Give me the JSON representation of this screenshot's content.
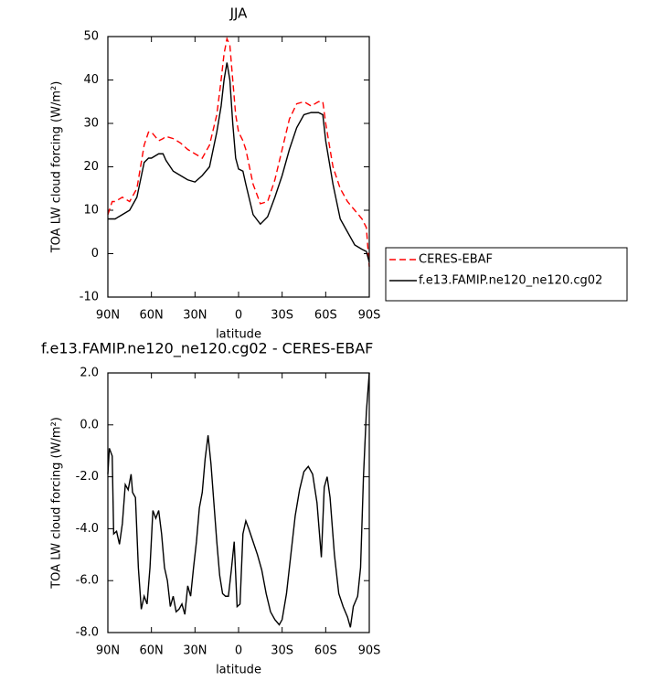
{
  "chart_data": [
    {
      "type": "line",
      "title": "JJA",
      "xlabel": "latitude",
      "ylabel": "TOA LW cloud forcing (W/m²)",
      "x": [
        90,
        87,
        85,
        80,
        75,
        70,
        65,
        62,
        60,
        55,
        52,
        50,
        45,
        40,
        35,
        30,
        25,
        20,
        15,
        12,
        10,
        8,
        6,
        4,
        2,
        0,
        -3,
        -5,
        -10,
        -15,
        -20,
        -25,
        -30,
        -35,
        -40,
        -45,
        -50,
        -55,
        -58,
        -60,
        -65,
        -70,
        -75,
        -80,
        -85,
        -88,
        -90
      ],
      "series": [
        {
          "name": "CERES-EBAF",
          "color": "#ff0000",
          "style": "dashed",
          "values": [
            9,
            12,
            12,
            13,
            12,
            15,
            25,
            28,
            28,
            26,
            26.5,
            27,
            26.5,
            25.5,
            24,
            23,
            22,
            25,
            32,
            40,
            46,
            49.5,
            48,
            40,
            32,
            28,
            26,
            24,
            16,
            11.5,
            12,
            17,
            24,
            31,
            34.5,
            35,
            34,
            35,
            35,
            30,
            20,
            15,
            12,
            10,
            8,
            6,
            -3
          ]
        },
        {
          "name": "f.e13.FAMIP.ne120_ne120.cg02",
          "color": "#000000",
          "style": "solid",
          "values": [
            8,
            8,
            8,
            9,
            10,
            13,
            21,
            22,
            22,
            23,
            23,
            21.5,
            19,
            18,
            17,
            16.5,
            18,
            20,
            28,
            34,
            40,
            44,
            40,
            30,
            22,
            19.5,
            19,
            16,
            9,
            6.8,
            8.5,
            13,
            18,
            24,
            29,
            32,
            32.5,
            32.5,
            32,
            26,
            16,
            8,
            5,
            2,
            1,
            0.5,
            -2
          ]
        }
      ],
      "xlim": [
        90,
        -90
      ],
      "xticks": [
        {
          "value": 90,
          "label": "90N"
        },
        {
          "value": 60,
          "label": "60N"
        },
        {
          "value": 30,
          "label": "30N"
        },
        0,
        {
          "value": -30,
          "label": "30S"
        },
        {
          "value": -60,
          "label": "60S"
        },
        {
          "value": -90,
          "label": "90S"
        }
      ],
      "ylim": [
        -10,
        50
      ],
      "yticks": [
        -10,
        0,
        10,
        20,
        30,
        40,
        50
      ],
      "grid": false,
      "legend": "outside-right"
    },
    {
      "type": "line",
      "title": "f.e13.FAMIP.ne120_ne120.cg02 - CERES-EBAF",
      "xlabel": "latitude",
      "ylabel": "TOA LW cloud forcing (W/m²)",
      "x": [
        90,
        89,
        87,
        86,
        84,
        82,
        80,
        78,
        76,
        74,
        73,
        71,
        69,
        67,
        65,
        63,
        61,
        59,
        57,
        55,
        53,
        51,
        49,
        47,
        45,
        43,
        41,
        39,
        37,
        35,
        33,
        31,
        29,
        27,
        25,
        23,
        21,
        19,
        17,
        15,
        13,
        11,
        9,
        7,
        5,
        3,
        1,
        -1,
        -3,
        -5,
        -7,
        -10,
        -13,
        -16,
        -19,
        -22,
        -25,
        -28,
        -30,
        -33,
        -36,
        -39,
        -42,
        -45,
        -48,
        -51,
        -54,
        -56,
        -57,
        -59,
        -61,
        -63,
        -66,
        -69,
        -72,
        -75,
        -77,
        -79,
        -82,
        -84,
        -86,
        -88,
        -90
      ],
      "values": [
        -1.9,
        -0.9,
        -1.2,
        -4.2,
        -4.1,
        -4.6,
        -3.8,
        -2.3,
        -2.5,
        -1.9,
        -2.6,
        -2.8,
        -5.5,
        -7.1,
        -6.6,
        -6.9,
        -5.5,
        -3.3,
        -3.6,
        -3.3,
        -4.2,
        -5.5,
        -6.0,
        -7.0,
        -6.6,
        -7.2,
        -7.1,
        -6.9,
        -7.3,
        -6.2,
        -6.6,
        -5.5,
        -4.5,
        -3.2,
        -2.6,
        -1.3,
        -0.4,
        -1.5,
        -3.0,
        -4.5,
        -5.8,
        -6.5,
        -6.6,
        -6.6,
        -5.6,
        -4.5,
        -7.0,
        -6.9,
        -4.2,
        -3.7,
        -4.0,
        -4.5,
        -5.0,
        -5.6,
        -6.5,
        -7.2,
        -7.5,
        -7.7,
        -7.5,
        -6.5,
        -5.0,
        -3.5,
        -2.5,
        -1.8,
        -1.6,
        -1.9,
        -3.0,
        -4.4,
        -5.1,
        -2.4,
        -2.0,
        -2.8,
        -5.0,
        -6.5,
        -7.0,
        -7.4,
        -7.8,
        -7.0,
        -6.6,
        -5.5,
        -2.0,
        0.5,
        2.0
      ],
      "color": "#000000",
      "xlim": [
        90,
        -90
      ],
      "xticks": [
        {
          "value": 90,
          "label": "90N"
        },
        {
          "value": 60,
          "label": "60N"
        },
        {
          "value": 30,
          "label": "30N"
        },
        0,
        {
          "value": -30,
          "label": "30S"
        },
        {
          "value": -60,
          "label": "60S"
        },
        {
          "value": -90,
          "label": "90S"
        }
      ],
      "ylim": [
        -8,
        2
      ],
      "yticks": [
        {
          "value": -8,
          "label": "-8.0"
        },
        {
          "value": -6,
          "label": "-6.0"
        },
        {
          "value": -4,
          "label": "-4.0"
        },
        {
          "value": -2,
          "label": "-2.0"
        },
        {
          "value": 0,
          "label": "0.0"
        },
        {
          "value": 2,
          "label": "2.0"
        }
      ],
      "grid": false
    }
  ]
}
